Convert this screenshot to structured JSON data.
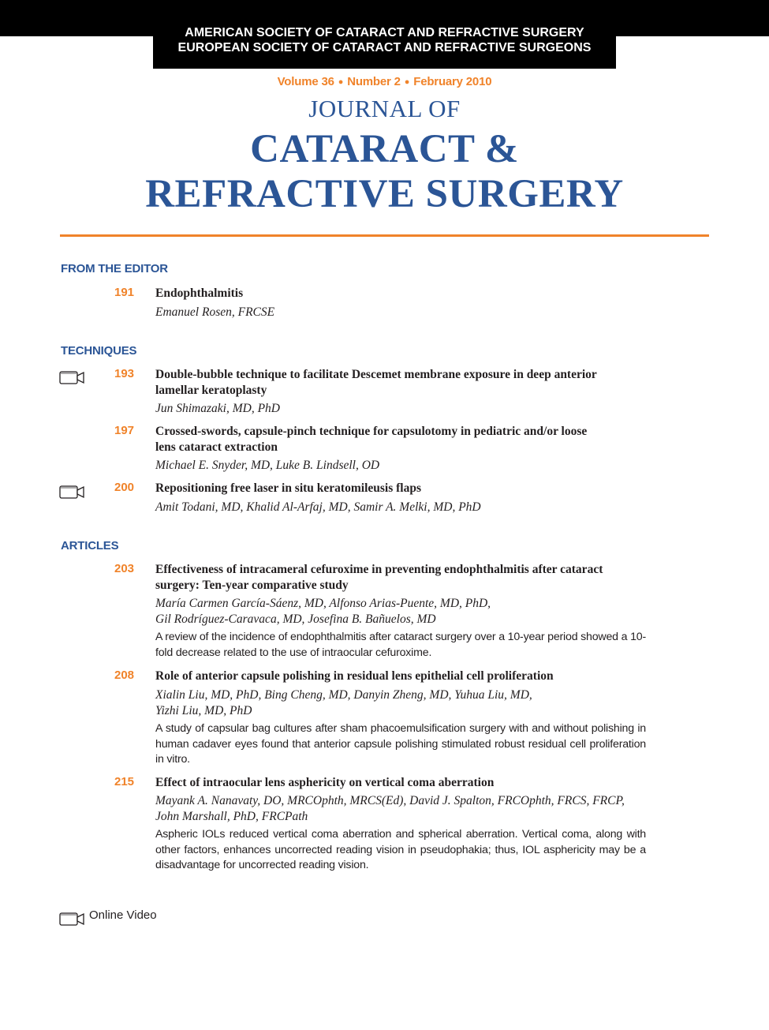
{
  "header": {
    "society_line1": "AMERICAN SOCIETY OF CATARACT AND REFRACTIVE SURGERY",
    "society_line2": "EUROPEAN SOCIETY OF CATARACT AND REFRACTIVE SURGEONS",
    "volume": "Volume 36",
    "number": "Number 2",
    "date": "February 2010",
    "journal_of": "JOURNAL OF",
    "title_line1": "CATARACT &",
    "title_line2": "REFRACTIVE SURGERY"
  },
  "icons": {
    "video": "video-camera-icon"
  },
  "colors": {
    "accent_orange": "#f0832a",
    "title_blue": "#2b5596"
  },
  "sections": {
    "editor": {
      "heading": "FROM THE EDITOR",
      "items": [
        {
          "page": "191",
          "title": "Endophthalmitis",
          "authors": "Emanuel Rosen, FRCSE"
        }
      ]
    },
    "techniques": {
      "heading": "TECHNIQUES",
      "items": [
        {
          "page": "193",
          "title_line1": "Double-bubble technique to facilitate Descemet membrane exposure in deep anterior",
          "title_line2": "lamellar keratoplasty",
          "authors": "Jun Shimazaki, MD, PhD",
          "video": true
        },
        {
          "page": "197",
          "title_line1": "Crossed-swords, capsule-pinch technique for capsulotomy in pediatric and/or loose",
          "title_line2": "lens cataract extraction",
          "authors": "Michael E. Snyder, MD, Luke B. Lindsell, OD",
          "video": false
        },
        {
          "page": "200",
          "title": "Repositioning free laser in situ keratomileusis flaps",
          "authors": "Amit Todani, MD, Khalid Al-Arfaj, MD, Samir A. Melki, MD, PhD",
          "video": true
        }
      ]
    },
    "articles": {
      "heading": "ARTICLES",
      "items": [
        {
          "page": "203",
          "title_line1": "Effectiveness of intracameral cefuroxime in preventing endophthalmitis after cataract",
          "title_line2": "surgery: Ten-year comparative study",
          "authors_line1": "María Carmen García-Sáenz, MD, Alfonso Arias-Puente, MD, PhD,",
          "authors_line2": "Gil Rodríguez-Caravaca, MD, Josefina B. Bañuelos, MD",
          "abstract": "A review of the incidence of endophthalmitis after cataract surgery over a 10-year period showed a 10-fold decrease related to the use of intraocular cefuroxime."
        },
        {
          "page": "208",
          "title": "Role of anterior capsule polishing in residual lens epithelial cell proliferation",
          "authors_line1": "Xialin Liu, MD, PhD, Bing Cheng, MD, Danyin Zheng, MD, Yuhua Liu, MD,",
          "authors_line2": "Yizhi Liu, MD, PhD",
          "abstract": "A study of capsular bag cultures after sham phacoemulsification surgery with and without polishing in human cadaver eyes found that anterior capsule polishing stimulated robust residual cell proliferation in vitro."
        },
        {
          "page": "215",
          "title": "Effect of intraocular lens asphericity on vertical coma aberration",
          "authors_line1": "Mayank A. Nanavaty, DO, MRCOphth, MRCS(Ed), David J. Spalton, FRCOphth, FRCS, FRCP,",
          "authors_line2": "John Marshall, PhD, FRCPath",
          "abstract": "Aspheric IOLs reduced vertical coma aberration and spherical aberration. Vertical coma, along with other factors, enhances uncorrected reading vision in pseudophakia; thus, IOL asphericity may be a disadvantage for uncorrected reading vision."
        }
      ]
    }
  },
  "legend": {
    "label": "Online Video"
  }
}
